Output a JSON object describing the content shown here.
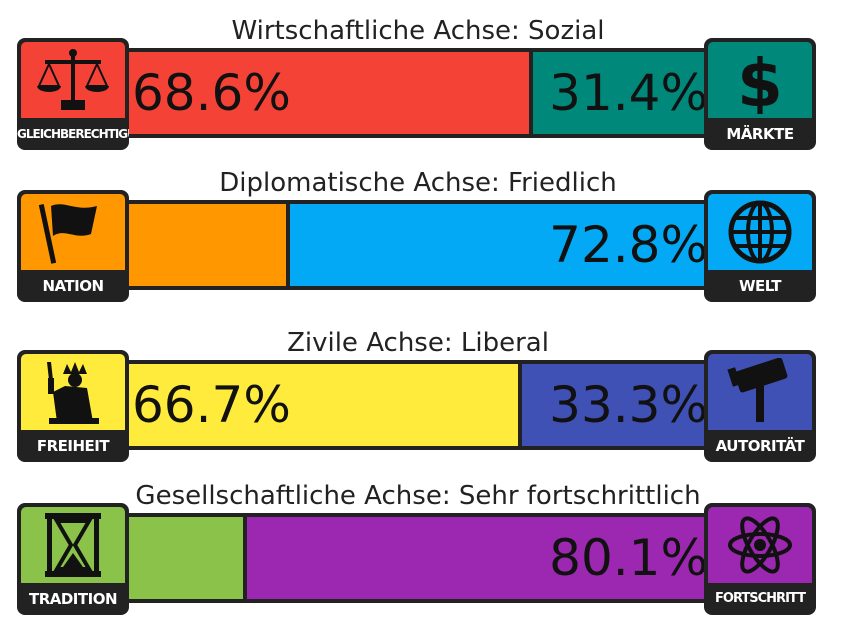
{
  "chart_data": [
    {
      "type": "bar",
      "title": "Wirtschaftliche Achse: Sozial",
      "left": {
        "label": "GLEICHBERECHTIGUNG",
        "value": 68.6,
        "display": "68.6%",
        "color": "#f44336",
        "icon": "scales-icon"
      },
      "right": {
        "label": "MÄRKTE",
        "value": 31.4,
        "display": "31.4%",
        "color": "#00897b",
        "icon": "dollar-icon"
      }
    },
    {
      "type": "bar",
      "title": "Diplomatische Achse: Friedlich",
      "left": {
        "label": "NATION",
        "value": 27.2,
        "display": "",
        "color": "#ff9800",
        "icon": "flag-icon"
      },
      "right": {
        "label": "WELT",
        "value": 72.8,
        "display": "72.8%",
        "color": "#03a9f4",
        "icon": "globe-icon"
      }
    },
    {
      "type": "bar",
      "title": "Zivile Achse: Liberal",
      "left": {
        "label": "FREIHEIT",
        "value": 66.7,
        "display": "66.7%",
        "color": "#ffeb3b",
        "icon": "liberty-icon"
      },
      "right": {
        "label": "AUTORITÄT",
        "value": 33.3,
        "display": "33.3%",
        "color": "#3f51b5",
        "icon": "gavel-icon"
      }
    },
    {
      "type": "bar",
      "title": "Gesellschaftliche Achse: Sehr fortschrittlich",
      "left": {
        "label": "TRADITION",
        "value": 19.9,
        "display": "",
        "color": "#8bc34a",
        "icon": "hourglass-icon"
      },
      "right": {
        "label": "FORTSCHRITT",
        "value": 80.1,
        "display": "80.1%",
        "color": "#9c27b0",
        "icon": "atom-icon"
      }
    }
  ]
}
